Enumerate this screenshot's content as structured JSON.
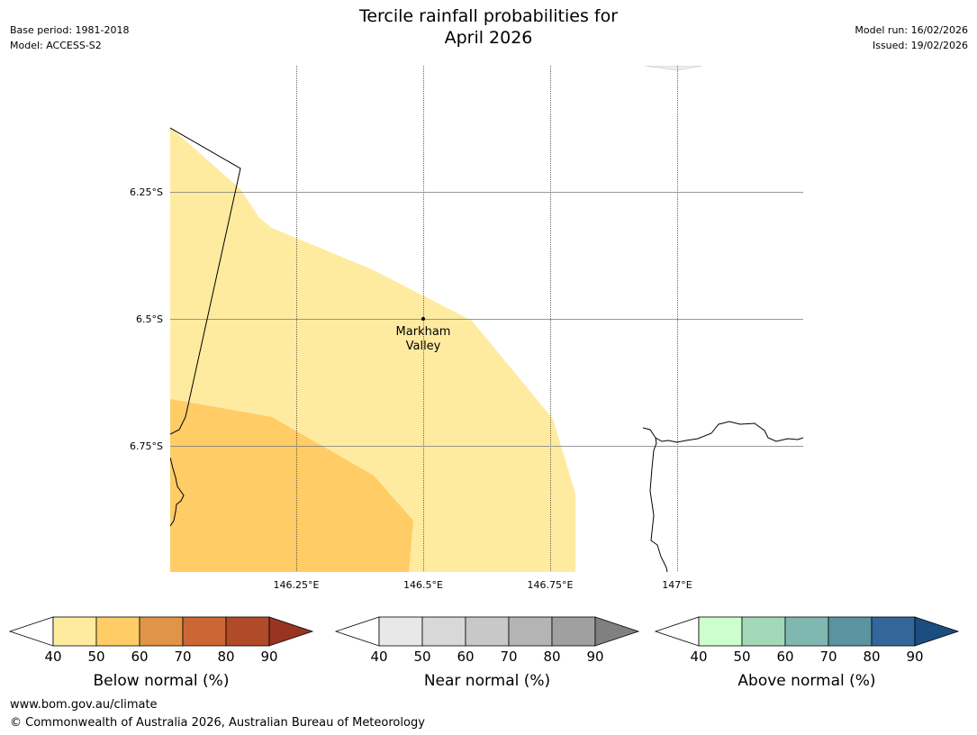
{
  "header": {
    "title_line1": "Tercile rainfall probabilities for",
    "title_line2": "April 2026",
    "base_period": "Base period: 1981-2018",
    "model": "Model: ACCESS-S2",
    "model_run": "Model run: 16/02/2026",
    "issued": "Issued: 19/02/2026"
  },
  "map": {
    "place_marker": {
      "name_line1": "Markham",
      "name_line2": "Valley",
      "lon": 146.5,
      "lat": -6.5
    },
    "longitude_labels": [
      "146.25°E",
      "146.5°E",
      "146.75°E",
      "147°E"
    ],
    "latitude_labels": [
      "6.25°S",
      "6.5°S",
      "6.75°S"
    ],
    "probability_regions": [
      {
        "category": "Below normal",
        "probability_band": "40-50",
        "color": "#ffeba0"
      },
      {
        "category": "Below normal",
        "probability_band": "50-60",
        "color": "#ffcc66"
      }
    ]
  },
  "colorbars": [
    {
      "id": "below",
      "label": "Below normal (%)",
      "ticks": [
        "40",
        "50",
        "60",
        "70",
        "80",
        "90"
      ],
      "colors": [
        "#ffeba0",
        "#ffcc66",
        "#e09448",
        "#cc6633",
        "#b04a28",
        "#993322"
      ]
    },
    {
      "id": "near",
      "label": "Near normal (%)",
      "ticks": [
        "40",
        "50",
        "60",
        "70",
        "80",
        "90"
      ],
      "colors": [
        "#e8e8e8",
        "#d8d8d8",
        "#c8c8c8",
        "#b4b4b4",
        "#a0a0a0",
        "#808080"
      ]
    },
    {
      "id": "above",
      "label": "Above normal (%)",
      "ticks": [
        "40",
        "50",
        "60",
        "70",
        "80",
        "90"
      ],
      "colors": [
        "#ccffcc",
        "#a3d9b8",
        "#7fb8b0",
        "#5a94a0",
        "#336699",
        "#1a4d80"
      ]
    }
  ],
  "footer": {
    "url": "www.bom.gov.au/climate",
    "copyright": "© Commonwealth of Australia 2026, Australian Bureau of Meteorology"
  }
}
